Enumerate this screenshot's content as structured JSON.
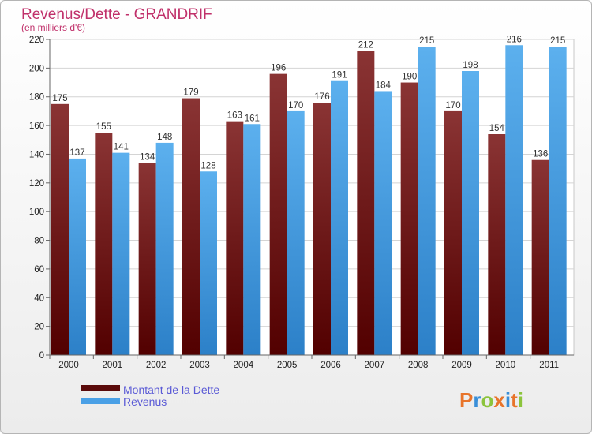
{
  "chart_data": {
    "type": "bar",
    "title": "Revenus/Dette - GRANDRIF",
    "subtitle": "(en milliers d'€)",
    "categories": [
      "2000",
      "2001",
      "2002",
      "2003",
      "2004",
      "2005",
      "2006",
      "2007",
      "2008",
      "2009",
      "2010",
      "2011"
    ],
    "series": [
      {
        "name": "Montant de la Dette",
        "values": [
          175,
          155,
          134,
          179,
          163,
          196,
          176,
          212,
          190,
          170,
          154,
          136
        ],
        "color": "#7a1e1e"
      },
      {
        "name": "Revenus",
        "values": [
          137,
          141,
          148,
          128,
          161,
          170,
          191,
          184,
          215,
          198,
          216,
          215
        ],
        "color": "#4aa0e6"
      }
    ],
    "ylim": [
      0,
      220
    ],
    "yticks": [
      0,
      20,
      40,
      60,
      80,
      100,
      120,
      140,
      160,
      180,
      200,
      220
    ],
    "grid": true,
    "legend": "bottom-left"
  },
  "brand": {
    "logo_text": "Proxiti",
    "letter_colors": [
      "#e8742a",
      "#3a8fd8",
      "#8cc43c",
      "#e8742a",
      "#3a8fd8",
      "#e8742a",
      "#8cc43c"
    ]
  }
}
